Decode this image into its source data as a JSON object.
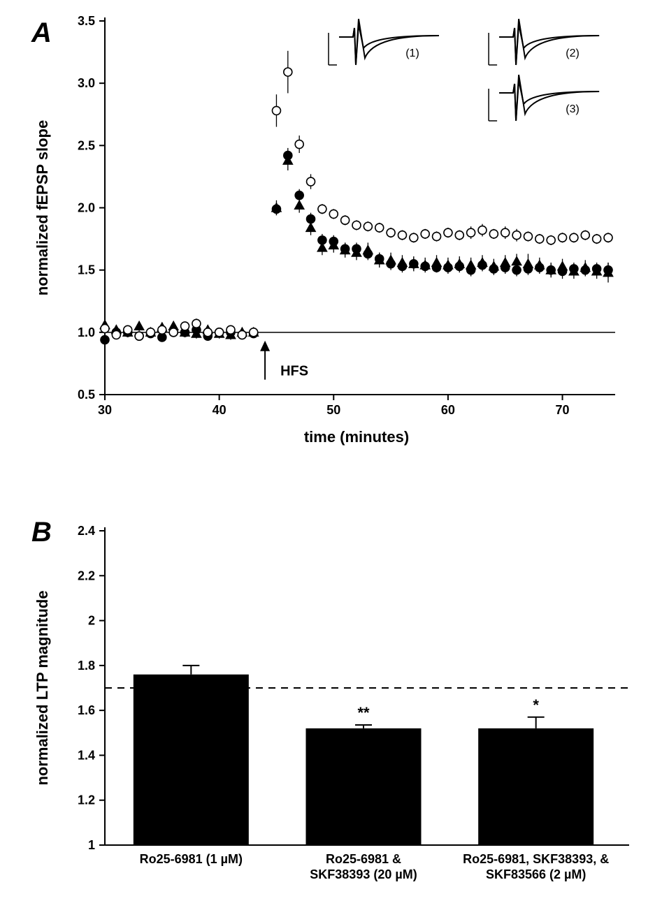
{
  "panelA": {
    "label": "A",
    "ylabel": "normalized fEPSP slope",
    "xlabel": "time (minutes)",
    "xlim": [
      30,
      74
    ],
    "ylim": [
      0.5,
      3.5
    ],
    "xticks": [
      30,
      40,
      50,
      60,
      70
    ],
    "yticks": [
      0.5,
      1.0,
      1.5,
      2.0,
      2.5,
      3.0,
      3.5
    ],
    "refline_y": 1.0,
    "hfs_x": 44,
    "hfs_label": "HFS",
    "axis_fontsize": 20,
    "tick_fontsize": 18,
    "label_fontsize": 22,
    "marker_size": 6,
    "inset_labels": [
      "(1)",
      "(2)",
      "(3)"
    ],
    "series_open_circle": {
      "color": "#000000",
      "fill": "#ffffff",
      "marker": "circle",
      "points": [
        {
          "x": 30,
          "y": 1.03,
          "e": 0.05
        },
        {
          "x": 31,
          "y": 0.98,
          "e": 0.03
        },
        {
          "x": 32,
          "y": 1.02,
          "e": 0.03
        },
        {
          "x": 33,
          "y": 0.97,
          "e": 0.03
        },
        {
          "x": 34,
          "y": 1.0,
          "e": 0.03
        },
        {
          "x": 35,
          "y": 1.02,
          "e": 0.03
        },
        {
          "x": 36,
          "y": 1.0,
          "e": 0.03
        },
        {
          "x": 37,
          "y": 1.05,
          "e": 0.03
        },
        {
          "x": 38,
          "y": 1.07,
          "e": 0.04
        },
        {
          "x": 39,
          "y": 1.0,
          "e": 0.03
        },
        {
          "x": 40,
          "y": 1.0,
          "e": 0.03
        },
        {
          "x": 41,
          "y": 1.02,
          "e": 0.03
        },
        {
          "x": 42,
          "y": 0.98,
          "e": 0.03
        },
        {
          "x": 43,
          "y": 1.0,
          "e": 0.03
        },
        {
          "x": 45,
          "y": 2.78,
          "e": 0.13
        },
        {
          "x": 46,
          "y": 3.09,
          "e": 0.17
        },
        {
          "x": 47,
          "y": 2.51,
          "e": 0.07
        },
        {
          "x": 48,
          "y": 2.21,
          "e": 0.06
        },
        {
          "x": 49,
          "y": 1.99,
          "e": 0.04
        },
        {
          "x": 50,
          "y": 1.95,
          "e": 0.04
        },
        {
          "x": 51,
          "y": 1.9,
          "e": 0.04
        },
        {
          "x": 52,
          "y": 1.86,
          "e": 0.04
        },
        {
          "x": 53,
          "y": 1.85,
          "e": 0.04
        },
        {
          "x": 54,
          "y": 1.84,
          "e": 0.04
        },
        {
          "x": 55,
          "y": 1.8,
          "e": 0.04
        },
        {
          "x": 56,
          "y": 1.78,
          "e": 0.04
        },
        {
          "x": 57,
          "y": 1.76,
          "e": 0.04
        },
        {
          "x": 58,
          "y": 1.79,
          "e": 0.04
        },
        {
          "x": 59,
          "y": 1.77,
          "e": 0.04
        },
        {
          "x": 60,
          "y": 1.8,
          "e": 0.04
        },
        {
          "x": 61,
          "y": 1.78,
          "e": 0.04
        },
        {
          "x": 62,
          "y": 1.8,
          "e": 0.05
        },
        {
          "x": 63,
          "y": 1.82,
          "e": 0.05
        },
        {
          "x": 64,
          "y": 1.79,
          "e": 0.04
        },
        {
          "x": 65,
          "y": 1.8,
          "e": 0.05
        },
        {
          "x": 66,
          "y": 1.78,
          "e": 0.05
        },
        {
          "x": 67,
          "y": 1.77,
          "e": 0.04
        },
        {
          "x": 68,
          "y": 1.75,
          "e": 0.04
        },
        {
          "x": 69,
          "y": 1.74,
          "e": 0.04
        },
        {
          "x": 70,
          "y": 1.76,
          "e": 0.04
        },
        {
          "x": 71,
          "y": 1.76,
          "e": 0.04
        },
        {
          "x": 72,
          "y": 1.78,
          "e": 0.04
        },
        {
          "x": 73,
          "y": 1.75,
          "e": 0.04
        },
        {
          "x": 74,
          "y": 1.76,
          "e": 0.04
        }
      ]
    },
    "series_filled_circle": {
      "color": "#000000",
      "fill": "#000000",
      "marker": "circle",
      "points": [
        {
          "x": 30,
          "y": 0.94,
          "e": 0.04
        },
        {
          "x": 31,
          "y": 1.0,
          "e": 0.03
        },
        {
          "x": 32,
          "y": 1.0,
          "e": 0.03
        },
        {
          "x": 33,
          "y": 0.97,
          "e": 0.03
        },
        {
          "x": 34,
          "y": 0.99,
          "e": 0.03
        },
        {
          "x": 35,
          "y": 0.96,
          "e": 0.03
        },
        {
          "x": 36,
          "y": 1.0,
          "e": 0.03
        },
        {
          "x": 37,
          "y": 1.0,
          "e": 0.03
        },
        {
          "x": 38,
          "y": 1.02,
          "e": 0.03
        },
        {
          "x": 39,
          "y": 0.97,
          "e": 0.03
        },
        {
          "x": 40,
          "y": 1.0,
          "e": 0.03
        },
        {
          "x": 41,
          "y": 1.0,
          "e": 0.03
        },
        {
          "x": 42,
          "y": 0.98,
          "e": 0.03
        },
        {
          "x": 43,
          "y": 0.99,
          "e": 0.03
        },
        {
          "x": 45,
          "y": 1.99,
          "e": 0.05
        },
        {
          "x": 46,
          "y": 2.42,
          "e": 0.06
        },
        {
          "x": 47,
          "y": 2.1,
          "e": 0.05
        },
        {
          "x": 48,
          "y": 1.91,
          "e": 0.05
        },
        {
          "x": 49,
          "y": 1.74,
          "e": 0.05
        },
        {
          "x": 50,
          "y": 1.73,
          "e": 0.05
        },
        {
          "x": 51,
          "y": 1.67,
          "e": 0.05
        },
        {
          "x": 52,
          "y": 1.67,
          "e": 0.05
        },
        {
          "x": 53,
          "y": 1.63,
          "e": 0.05
        },
        {
          "x": 54,
          "y": 1.59,
          "e": 0.05
        },
        {
          "x": 55,
          "y": 1.55,
          "e": 0.05
        },
        {
          "x": 56,
          "y": 1.53,
          "e": 0.05
        },
        {
          "x": 57,
          "y": 1.55,
          "e": 0.05
        },
        {
          "x": 58,
          "y": 1.53,
          "e": 0.04
        },
        {
          "x": 59,
          "y": 1.52,
          "e": 0.04
        },
        {
          "x": 60,
          "y": 1.52,
          "e": 0.05
        },
        {
          "x": 61,
          "y": 1.53,
          "e": 0.05
        },
        {
          "x": 62,
          "y": 1.5,
          "e": 0.05
        },
        {
          "x": 63,
          "y": 1.54,
          "e": 0.05
        },
        {
          "x": 64,
          "y": 1.51,
          "e": 0.05
        },
        {
          "x": 65,
          "y": 1.52,
          "e": 0.05
        },
        {
          "x": 66,
          "y": 1.5,
          "e": 0.05
        },
        {
          "x": 67,
          "y": 1.51,
          "e": 0.05
        },
        {
          "x": 68,
          "y": 1.52,
          "e": 0.05
        },
        {
          "x": 69,
          "y": 1.5,
          "e": 0.05
        },
        {
          "x": 70,
          "y": 1.49,
          "e": 0.06
        },
        {
          "x": 71,
          "y": 1.51,
          "e": 0.05
        },
        {
          "x": 72,
          "y": 1.5,
          "e": 0.05
        },
        {
          "x": 73,
          "y": 1.51,
          "e": 0.05
        },
        {
          "x": 74,
          "y": 1.5,
          "e": 0.06
        }
      ]
    },
    "series_filled_triangle": {
      "color": "#000000",
      "fill": "#000000",
      "marker": "triangle",
      "points": [
        {
          "x": 30,
          "y": 1.06,
          "e": 0.05
        },
        {
          "x": 31,
          "y": 1.02,
          "e": 0.04
        },
        {
          "x": 32,
          "y": 1.0,
          "e": 0.04
        },
        {
          "x": 33,
          "y": 1.05,
          "e": 0.04
        },
        {
          "x": 34,
          "y": 1.0,
          "e": 0.04
        },
        {
          "x": 35,
          "y": 1.04,
          "e": 0.04
        },
        {
          "x": 36,
          "y": 1.05,
          "e": 0.04
        },
        {
          "x": 37,
          "y": 1.0,
          "e": 0.04
        },
        {
          "x": 38,
          "y": 0.99,
          "e": 0.04
        },
        {
          "x": 39,
          "y": 1.02,
          "e": 0.04
        },
        {
          "x": 40,
          "y": 0.99,
          "e": 0.04
        },
        {
          "x": 41,
          "y": 0.98,
          "e": 0.04
        },
        {
          "x": 42,
          "y": 1.0,
          "e": 0.04
        },
        {
          "x": 43,
          "y": 1.0,
          "e": 0.04
        },
        {
          "x": 45,
          "y": 2.0,
          "e": 0.06
        },
        {
          "x": 46,
          "y": 2.38,
          "e": 0.08
        },
        {
          "x": 47,
          "y": 2.02,
          "e": 0.06
        },
        {
          "x": 48,
          "y": 1.84,
          "e": 0.06
        },
        {
          "x": 49,
          "y": 1.68,
          "e": 0.06
        },
        {
          "x": 50,
          "y": 1.7,
          "e": 0.06
        },
        {
          "x": 51,
          "y": 1.66,
          "e": 0.06
        },
        {
          "x": 52,
          "y": 1.64,
          "e": 0.06
        },
        {
          "x": 53,
          "y": 1.66,
          "e": 0.06
        },
        {
          "x": 54,
          "y": 1.58,
          "e": 0.06
        },
        {
          "x": 55,
          "y": 1.58,
          "e": 0.06
        },
        {
          "x": 56,
          "y": 1.56,
          "e": 0.06
        },
        {
          "x": 57,
          "y": 1.55,
          "e": 0.06
        },
        {
          "x": 58,
          "y": 1.54,
          "e": 0.06
        },
        {
          "x": 59,
          "y": 1.56,
          "e": 0.06
        },
        {
          "x": 60,
          "y": 1.54,
          "e": 0.06
        },
        {
          "x": 61,
          "y": 1.55,
          "e": 0.06
        },
        {
          "x": 62,
          "y": 1.54,
          "e": 0.06
        },
        {
          "x": 63,
          "y": 1.56,
          "e": 0.06
        },
        {
          "x": 64,
          "y": 1.53,
          "e": 0.06
        },
        {
          "x": 65,
          "y": 1.56,
          "e": 0.06
        },
        {
          "x": 66,
          "y": 1.57,
          "e": 0.06
        },
        {
          "x": 67,
          "y": 1.55,
          "e": 0.08
        },
        {
          "x": 68,
          "y": 1.54,
          "e": 0.06
        },
        {
          "x": 69,
          "y": 1.5,
          "e": 0.06
        },
        {
          "x": 70,
          "y": 1.53,
          "e": 0.06
        },
        {
          "x": 71,
          "y": 1.49,
          "e": 0.06
        },
        {
          "x": 72,
          "y": 1.52,
          "e": 0.06
        },
        {
          "x": 73,
          "y": 1.49,
          "e": 0.06
        },
        {
          "x": 74,
          "y": 1.48,
          "e": 0.08
        }
      ]
    }
  },
  "panelB": {
    "label": "B",
    "ylabel": "normalized LTP magnitude",
    "ylim": [
      1.0,
      2.4
    ],
    "yticks": [
      1.0,
      1.2,
      1.4,
      1.6,
      1.8,
      2.0,
      2.2,
      2.4
    ],
    "dashed_line_y": 1.7,
    "axis_fontsize": 20,
    "tick_fontsize": 18,
    "label_fontsize": 22,
    "bar_color": "#000000",
    "bars": [
      {
        "label_line1": "Ro25-6981 (1 µM)",
        "label_line2": "",
        "value": 1.76,
        "err": 0.04,
        "sig": ""
      },
      {
        "label_line1": "Ro25-6981 &",
        "label_line2": "SKF38393 (20 µM)",
        "value": 1.52,
        "err": 0.015,
        "sig": "**"
      },
      {
        "label_line1": "Ro25-6981, SKF38393, &",
        "label_line2": "SKF83566 (2 µM)",
        "value": 1.52,
        "err": 0.05,
        "sig": "*"
      }
    ]
  }
}
